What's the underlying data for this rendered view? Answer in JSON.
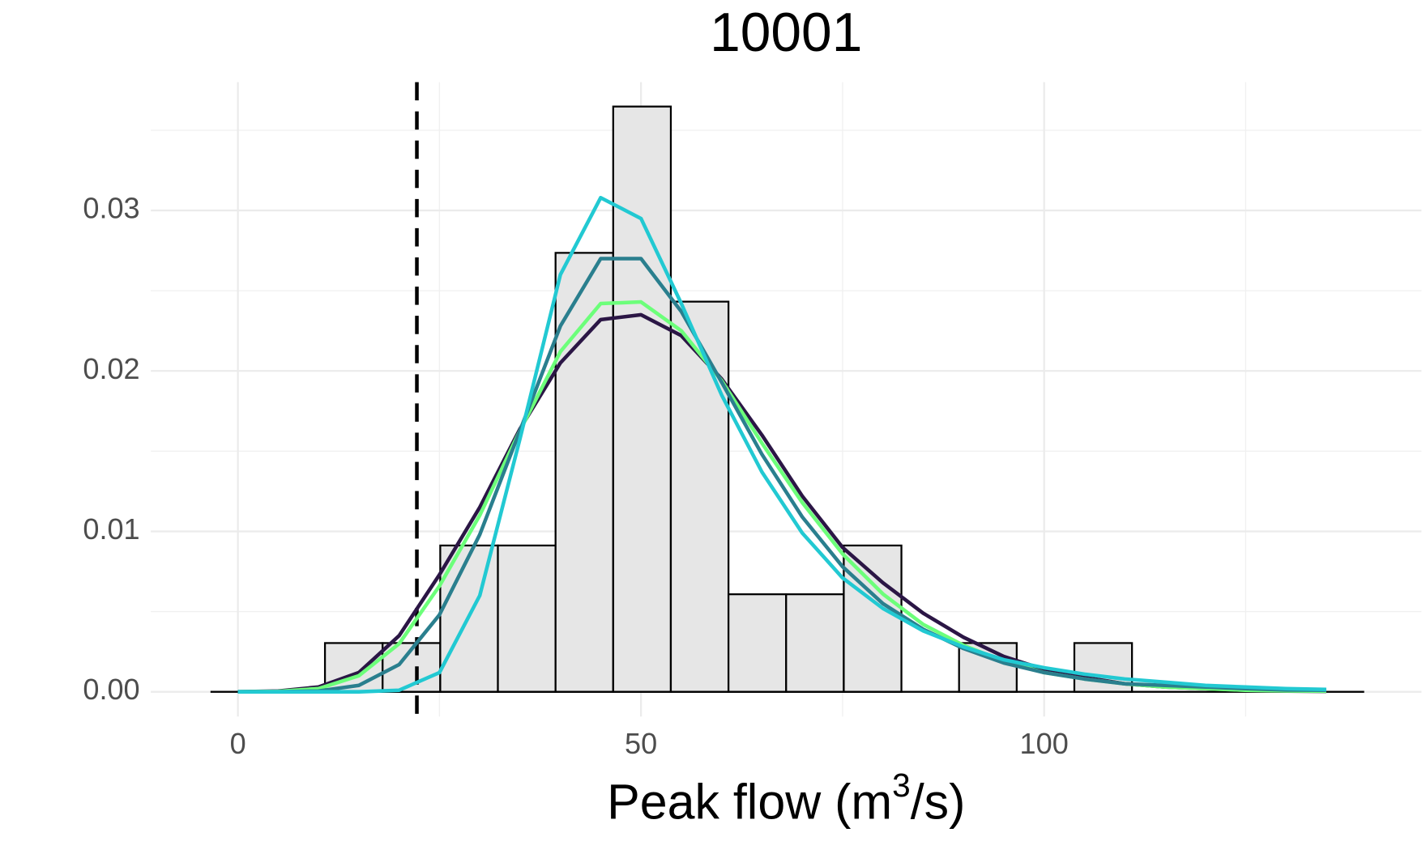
{
  "chart_data": {
    "type": "histogram",
    "title": "10001",
    "x_label": [
      "Peak flow (m",
      "3",
      "/s)"
    ],
    "bins": [
      10.8,
      17.95,
      25.1,
      32.25,
      39.4,
      46.55,
      53.7,
      60.85,
      68.0,
      75.15,
      82.3,
      89.45,
      96.6,
      103.75,
      110.9
    ],
    "values": [
      0.00304,
      0.00304,
      0.00912,
      0.00912,
      0.02736,
      0.03648,
      0.02432,
      0.00608,
      0.00608,
      0.00912,
      0,
      0.00304,
      0,
      0.00304
    ],
    "bar_color": "#e6e6e6",
    "bar_edge": "#000000",
    "curves": {
      "x": [
        0,
        5,
        10,
        15,
        20,
        25,
        30,
        35,
        40,
        45,
        50,
        55,
        60,
        65,
        70,
        75,
        80,
        85,
        90,
        95,
        100,
        105,
        110,
        115,
        120,
        125,
        130,
        135
      ],
      "series": [
        {
          "color": "#2b1645",
          "values": [
            0,
            5e-05,
            0.0003,
            0.0012,
            0.0035,
            0.0073,
            0.0115,
            0.0164,
            0.0205,
            0.0232,
            0.0235,
            0.0222,
            0.0195,
            0.016,
            0.0122,
            0.009,
            0.0068,
            0.0049,
            0.0034,
            0.0022,
            0.0014,
            0.0009,
            0.0005,
            0.0003,
            0.0002,
            0.0001,
            5e-05,
            3e-05
          ]
        },
        {
          "color": "#6cff7a",
          "values": [
            0,
            3e-05,
            0.0002,
            0.001,
            0.003,
            0.0066,
            0.011,
            0.0163,
            0.0212,
            0.0242,
            0.0243,
            0.0225,
            0.0194,
            0.0155,
            0.0118,
            0.0086,
            0.0061,
            0.0042,
            0.0029,
            0.0019,
            0.0012,
            0.0008,
            0.0005,
            0.0003,
            0.0002,
            0.0001,
            6e-05,
            4e-05
          ]
        },
        {
          "color": "#2a7f8e",
          "values": [
            0,
            0,
            5e-05,
            0.0004,
            0.0017,
            0.0048,
            0.0098,
            0.0163,
            0.0228,
            0.027,
            0.027,
            0.0237,
            0.0193,
            0.0148,
            0.0109,
            0.0078,
            0.0055,
            0.0039,
            0.0027,
            0.0018,
            0.0012,
            0.0008,
            0.0005,
            0.0004,
            0.0003,
            0.0002,
            0.00012,
            0.0001
          ]
        },
        {
          "color": "#22c9d2",
          "values": [
            0,
            0,
            0,
            0,
            0.0001,
            0.0012,
            0.006,
            0.0158,
            0.026,
            0.0308,
            0.0295,
            0.0242,
            0.0185,
            0.0137,
            0.0099,
            0.0071,
            0.0052,
            0.0038,
            0.0028,
            0.002,
            0.0015,
            0.0011,
            0.0008,
            0.0006,
            0.0004,
            0.0003,
            0.0002,
            0.00015
          ]
        }
      ]
    },
    "vline": 22.2,
    "baseline": {
      "y": 0,
      "x": [
        -3.4,
        139.7
      ]
    },
    "xlim": [
      -10.8,
      146.8
    ],
    "ylim": [
      -0.00154,
      0.038
    ],
    "xticks": [
      0,
      50,
      100
    ],
    "yticks": [
      {
        "value": 0,
        "label": "0.00"
      },
      0.01,
      0.02,
      0.03
    ],
    "x_minor_grid": [
      25,
      75,
      125
    ],
    "y_minor_grid": [
      0.005,
      0.015,
      0.025,
      0.035
    ],
    "grid": true
  }
}
